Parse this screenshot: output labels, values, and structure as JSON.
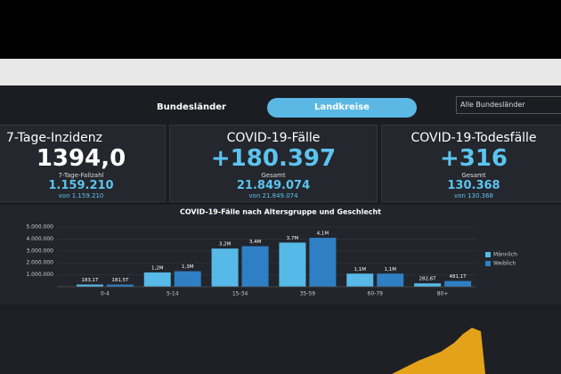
{
  "tabs": [
    "Bundesländer",
    "Landkreise"
  ],
  "dropdown": "Alle Bundesländer",
  "cards": [
    {
      "title": "7-Tage-Inzidenz",
      "value": "1394,0",
      "sub_label": "7-Tage-Fallzahl",
      "sub_value": "1.159.210",
      "note": "von 1.159.210"
    },
    {
      "title": "COVID-19-Fälle",
      "value": "+180.397",
      "sub_label": "Gesamt",
      "sub_value": "21.849.074",
      "note": "von 21.849.074"
    },
    {
      "title": "COVID-19-Todesfälle",
      "value": "+316",
      "sub_label": "Gesamt",
      "sub_value": "130.368",
      "note": "von 130.368"
    }
  ],
  "chart_data": {
    "type": "bar",
    "title": "COVID-19-Fälle nach Altersgruppe und Geschlecht",
    "categories": [
      "0-4",
      "5-14",
      "15-34",
      "35-59",
      "60-79",
      "80+"
    ],
    "series": [
      {
        "name": "Männlich",
        "color": "#56b9e8",
        "values": [
          183100,
          1200000,
          3200000,
          3700000,
          1100000,
          282600
        ],
        "value_labels": [
          "183,1T",
          "1,2M",
          "3,2M",
          "3,7M",
          "1,1M",
          "282,6T"
        ]
      },
      {
        "name": "Weiblich",
        "color": "#2f7fc4",
        "values": [
          181500,
          1300000,
          3400000,
          4100000,
          1100000,
          481100
        ],
        "value_labels": [
          "181,5T",
          "1,3M",
          "3,4M",
          "4,1M",
          "1,1M",
          "481,1T"
        ]
      }
    ],
    "ylim": [
      0,
      5000000
    ],
    "yticks": [
      {
        "value": 1000000,
        "label": "1.000.000"
      },
      {
        "value": 2000000,
        "label": "2.000.000"
      },
      {
        "value": 3000000,
        "label": "3.000.000"
      },
      {
        "value": 4000000,
        "label": "4.000.000"
      },
      {
        "value": 5000000,
        "label": "5.000.000"
      }
    ],
    "grid": true,
    "legend": "right"
  }
}
